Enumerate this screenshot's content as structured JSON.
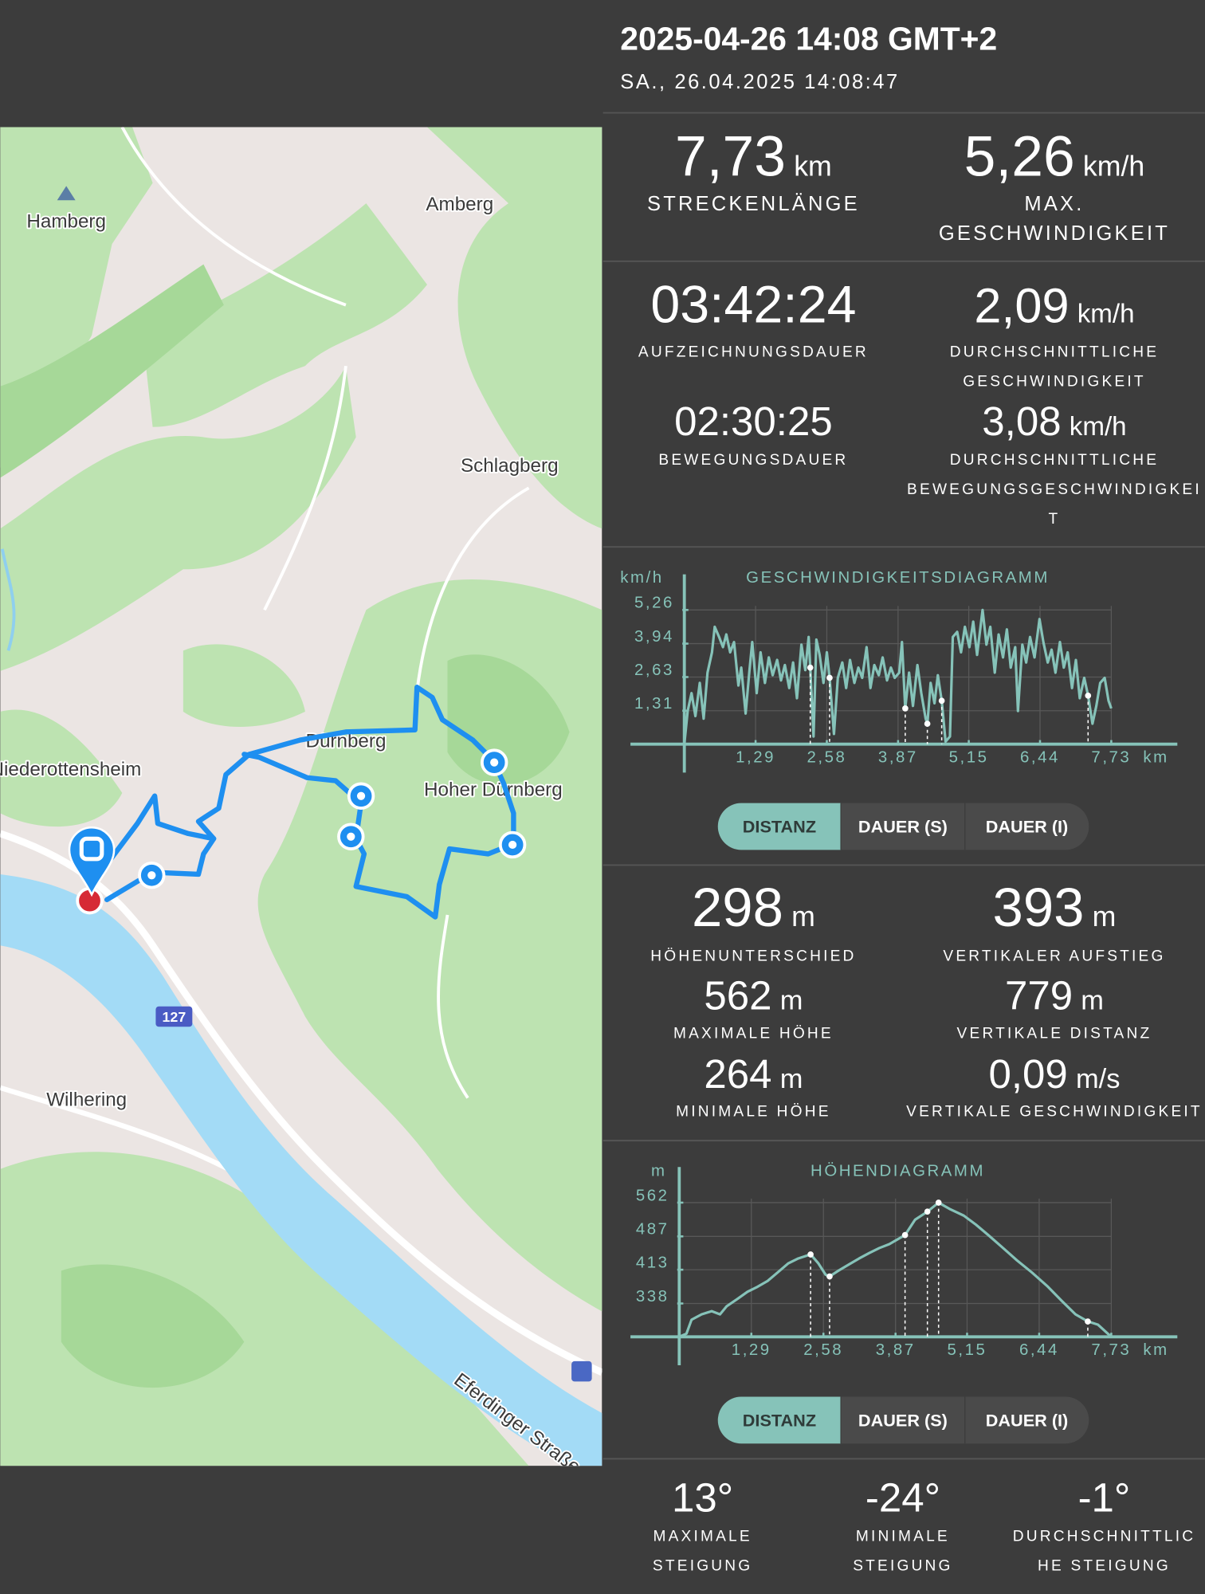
{
  "header": {
    "title": "2025-04-26 14:08 GMT+2",
    "subtitle": "SA., 26.04.2025 14:08:47"
  },
  "map": {
    "labels": [
      "Hamberg",
      "Amberg",
      "Schlagberg",
      "Dürnberg",
      "Niederottensheim",
      "Hoher Dürnberg",
      "Wilhering",
      "Eferdinger Straße"
    ],
    "road_number": "127"
  },
  "stats": [
    {
      "value": "7,73",
      "unit": "km",
      "label": [
        "STRECKENLÄNGE"
      ]
    },
    {
      "value": "5,26",
      "unit": "km/h",
      "label": [
        "MAX.",
        "GESCHWINDIGKEIT"
      ]
    },
    {
      "value": "03:42:24",
      "label": [
        "AUFZEICHNUNGSDAUER"
      ]
    },
    {
      "value": "2,09",
      "unit": "km/h",
      "label": [
        "DURCHSCHNITTLICHE",
        "GESCHWINDIGKEIT"
      ]
    },
    {
      "value": "02:30:25",
      "label": [
        "BEWEGUNGSDAUER"
      ]
    },
    {
      "value": "3,08",
      "unit": "km/h",
      "label": [
        "DURCHSCHNITTLICHE",
        "BEWEGUNGSGESCHWINDIGKEI",
        "T"
      ]
    },
    {
      "value": "298",
      "unit": "m",
      "label": [
        "HÖHENUNTERSCHIED"
      ]
    },
    {
      "value": "393",
      "unit": "m",
      "label": [
        "VERTIKALER AUFSTIEG"
      ]
    },
    {
      "value": "562",
      "unit": "m",
      "label": [
        "MAXIMALE HÖHE"
      ]
    },
    {
      "value": "779",
      "unit": "m",
      "label": [
        "VERTIKALE DISTANZ"
      ]
    },
    {
      "value": "264",
      "unit": "m",
      "label": [
        "MINIMALE HÖHE"
      ]
    },
    {
      "value": "0,09",
      "unit": "m/s",
      "label": [
        "VERTIKALE GESCHWINDIGKEIT"
      ]
    },
    {
      "value": "13°",
      "label": [
        "MAXIMALE",
        "STEIGUNG"
      ]
    },
    {
      "value": "-24°",
      "label": [
        "MINIMALE",
        "STEIGUNG"
      ]
    },
    {
      "value": "-1°",
      "label": [
        "DURCHSCHNITTLIC",
        "HE STEIGUNG"
      ]
    }
  ],
  "chart_data": [
    {
      "type": "line",
      "title": "GESCHWINDIGKEITSDIAGRAMM",
      "y_unit": "km/h",
      "x_unit": "km",
      "color": "#86c3b9",
      "grid": true,
      "xlim": [
        0,
        7.73
      ],
      "ylim": [
        0,
        5.26
      ],
      "xticks": [
        {
          "value": 1.29,
          "label": "1,29"
        },
        {
          "value": 2.58,
          "label": "2,58"
        },
        {
          "value": 3.87,
          "label": "3,87"
        },
        {
          "value": 5.15,
          "label": "5,15"
        },
        {
          "value": 6.44,
          "label": "6,44"
        },
        {
          "value": 7.73,
          "label": "7,73"
        }
      ],
      "yticks": [
        {
          "value": 1.31,
          "label": "1,31"
        },
        {
          "value": 2.63,
          "label": "2,63"
        },
        {
          "value": 3.94,
          "label": "3,94"
        },
        {
          "value": 5.26,
          "label": "5,26"
        }
      ],
      "x": [
        0,
        0.06,
        0.13,
        0.2,
        0.28,
        0.35,
        0.42,
        0.5,
        0.55,
        0.63,
        0.7,
        0.76,
        0.83,
        0.9,
        0.98,
        1.03,
        1.11,
        1.18,
        1.23,
        1.31,
        1.38,
        1.46,
        1.53,
        1.6,
        1.68,
        1.75,
        1.82,
        1.9,
        1.97,
        2.04,
        2.12,
        2.19,
        2.25,
        2.28,
        2.34,
        2.39,
        2.45,
        2.52,
        2.58,
        2.63,
        2.71,
        2.78,
        2.86,
        2.93,
        3.0,
        3.08,
        3.15,
        3.22,
        3.3,
        3.37,
        3.44,
        3.52,
        3.59,
        3.67,
        3.74,
        3.81,
        3.89,
        3.94,
        4.0,
        4.07,
        4.14,
        4.22,
        4.29,
        4.37,
        4.4,
        4.46,
        4.53,
        4.59,
        4.66,
        4.73,
        4.81,
        4.86,
        4.94,
        5.01,
        5.08,
        5.16,
        5.23,
        5.3,
        5.4,
        5.47,
        5.54,
        5.62,
        5.69,
        5.77,
        5.84,
        5.91,
        5.99,
        6.04,
        6.12,
        6.19,
        6.26,
        6.34,
        6.43,
        6.5,
        6.58,
        6.65,
        6.72,
        6.8,
        6.87,
        6.94,
        7.02,
        7.09,
        7.16,
        7.24,
        7.31,
        7.39,
        7.46,
        7.53,
        7.61,
        7.68,
        7.73
      ],
      "values": [
        0,
        1.3,
        2.0,
        1.1,
        2.4,
        1.0,
        2.8,
        3.6,
        4.6,
        4.2,
        3.8,
        4.3,
        3.6,
        4.0,
        2.3,
        3.0,
        1.2,
        2.9,
        4.0,
        2.0,
        3.6,
        2.4,
        3.4,
        2.7,
        3.3,
        2.5,
        3.1,
        2.2,
        3.2,
        1.8,
        3.9,
        2.9,
        4.2,
        3.0,
        0.3,
        4.1,
        3.5,
        2.4,
        3.6,
        2.6,
        0.4,
        2.6,
        3.2,
        2.2,
        3.3,
        2.4,
        3.0,
        2.6,
        3.8,
        2.2,
        3.1,
        2.7,
        3.4,
        2.5,
        3.0,
        2.6,
        2.8,
        4.0,
        1.4,
        2.8,
        1.5,
        3.1,
        2.0,
        1.0,
        0.8,
        2.4,
        1.6,
        2.7,
        1.7,
        0.1,
        0.3,
        4.2,
        4.4,
        3.6,
        4.6,
        3.8,
        4.8,
        3.5,
        5.26,
        3.9,
        4.6,
        2.8,
        4.3,
        3.4,
        4.5,
        3.0,
        3.8,
        1.3,
        3.9,
        3.2,
        4.2,
        3.4,
        4.9,
        4.0,
        3.2,
        3.7,
        2.8,
        4.0,
        3.0,
        3.6,
        2.2,
        3.3,
        1.8,
        2.6,
        1.9,
        0.8,
        1.5,
        2.4,
        2.6,
        1.7,
        1.4
      ],
      "pauses": {
        "x": [
          2.28,
          2.63,
          4.0,
          4.4,
          4.66,
          7.31
        ],
        "values": [
          3.0,
          2.6,
          1.4,
          0.8,
          1.7,
          1.9
        ]
      }
    },
    {
      "type": "line",
      "title": "HÖHENDIAGRAMM",
      "y_unit": "m",
      "x_unit": "km",
      "color": "#86c3b9",
      "grid": true,
      "xlim": [
        0,
        7.73
      ],
      "ylim": [
        264,
        562
      ],
      "xticks": [
        {
          "value": 1.29,
          "label": "1,29"
        },
        {
          "value": 2.58,
          "label": "2,58"
        },
        {
          "value": 3.87,
          "label": "3,87"
        },
        {
          "value": 5.15,
          "label": "5,15"
        },
        {
          "value": 6.44,
          "label": "6,44"
        },
        {
          "value": 7.73,
          "label": "7,73"
        }
      ],
      "yticks": [
        338,
        413,
        487,
        562
      ],
      "x": [
        0,
        0.13,
        0.22,
        0.4,
        0.58,
        0.73,
        0.85,
        1.04,
        1.22,
        1.4,
        1.58,
        1.76,
        1.95,
        2.13,
        2.35,
        2.49,
        2.62,
        2.69,
        2.85,
        3.04,
        3.22,
        3.4,
        3.58,
        3.76,
        4.04,
        4.22,
        4.44,
        4.64,
        4.85,
        5.09,
        5.31,
        5.53,
        5.76,
        6.04,
        6.31,
        6.58,
        6.85,
        7.09,
        7.31,
        7.49,
        7.73
      ],
      "values": [
        264,
        271,
        302,
        314,
        321,
        314,
        332,
        348,
        364,
        375,
        388,
        407,
        427,
        438,
        447,
        427,
        402,
        398,
        411,
        425,
        438,
        450,
        461,
        470,
        490,
        524,
        542,
        562,
        547,
        533,
        513,
        490,
        465,
        434,
        407,
        377,
        343,
        314,
        298,
        291,
        264
      ],
      "pauses": {
        "x": [
          2.35,
          2.69,
          4.04,
          4.44,
          4.64,
          7.31
        ],
        "values": [
          447,
          398,
          490,
          542,
          562,
          298
        ]
      }
    }
  ],
  "tab_groups": [
    {
      "tabs": [
        "DISTANZ",
        "DAUER (S)",
        "DAUER (I)"
      ]
    },
    {
      "tabs": [
        "DISTANZ",
        "DAUER (S)",
        "DAUER (I)"
      ]
    }
  ]
}
